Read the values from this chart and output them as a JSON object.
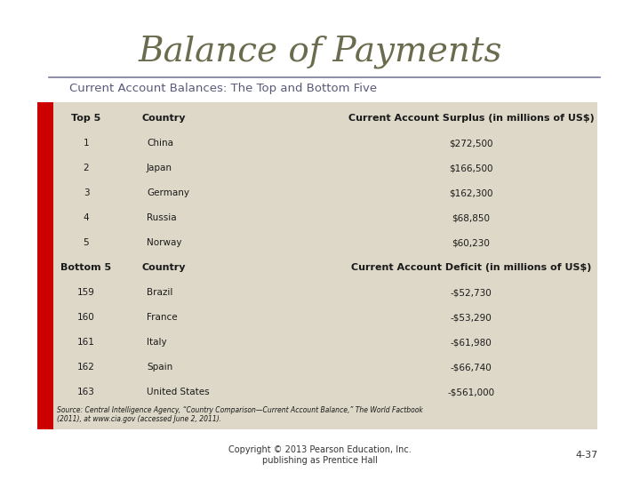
{
  "title": "Balance of Payments",
  "subtitle": "Current Account Balances: The Top and Bottom Five",
  "title_color": "#6b6b4e",
  "subtitle_color": "#5a5a7a",
  "separator_color": "#7a7a9a",
  "table_bg": "#ddd8c8",
  "white_bg": "#ffffff",
  "header_top5": "Top 5",
  "header_country": "Country",
  "header_surplus": "Current Account Surplus (in millions of US$)",
  "header_bottom5": "Bottom 5",
  "header_deficit": "Current Account Deficit (in millions of US$)",
  "top5_ranks": [
    "1",
    "2",
    "3",
    "4",
    "5"
  ],
  "top5_countries": [
    "China",
    "Japan",
    "Germany",
    "Russia",
    "Norway"
  ],
  "top5_values": [
    "$272,500",
    "$166,500",
    "$162,300",
    "$68,850",
    "$60,230"
  ],
  "bottom5_ranks": [
    "159",
    "160",
    "161",
    "162",
    "163"
  ],
  "bottom5_countries": [
    "Brazil",
    "France",
    "Italy",
    "Spain",
    "United States"
  ],
  "bottom5_values": [
    "-$52,730",
    "-$53,290",
    "-$61,980",
    "-$66,740",
    "-$561,000"
  ],
  "source_text_1": "Source: Central Intelligence Agency, “Country Comparison—Current Account Balance,” The World Factbook",
  "source_text_2": "(2011), at www.cia.gov (accessed June 2, 2011).",
  "footer_left": "Copyright © 2013 Pearson Education, Inc.\npublishing as Prentice Hall",
  "footer_right": "4-37",
  "red_bar_color": "#cc0000"
}
